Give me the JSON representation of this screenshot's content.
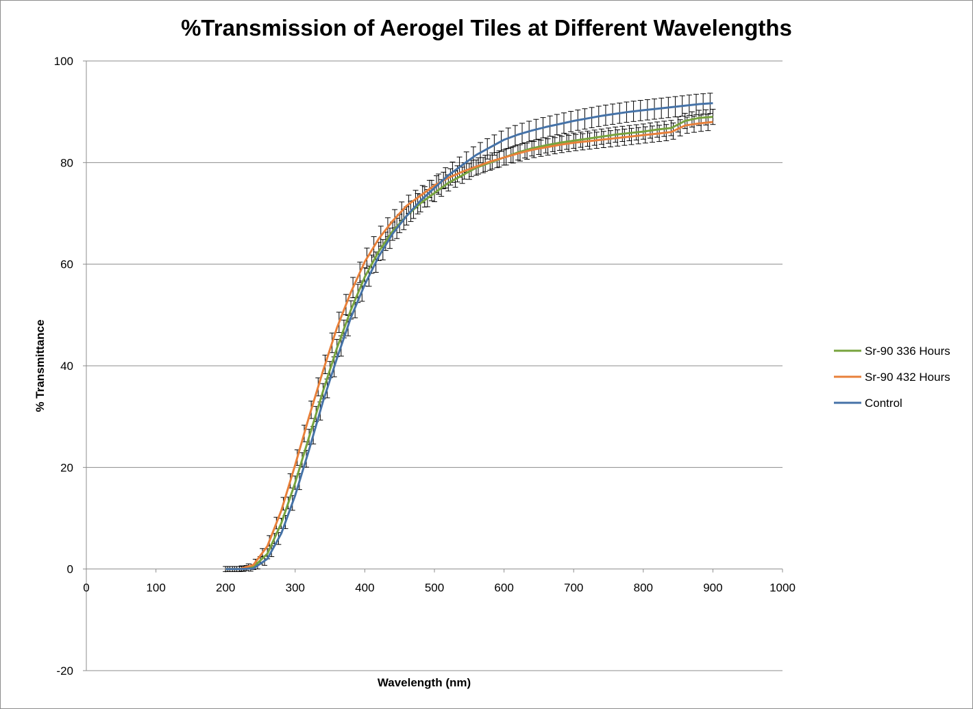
{
  "chart_data": {
    "type": "line",
    "title": "%Transmission of Aerogel Tiles at Different Wavelengths",
    "xlabel": "Wavelength (nm)",
    "ylabel": "% Transmittance",
    "xlim": [
      0,
      1000
    ],
    "ylim": [
      -20,
      100
    ],
    "x_ticks": [
      0,
      100,
      200,
      300,
      400,
      500,
      600,
      700,
      800,
      900,
      1000
    ],
    "y_ticks": [
      -20,
      0,
      20,
      40,
      60,
      80,
      100
    ],
    "x_tick_labels": [
      "0",
      "100",
      "200",
      "300",
      "400",
      "500",
      "600",
      "700",
      "800",
      "900",
      "1000"
    ],
    "y_tick_labels": [
      "-20",
      "0",
      "20",
      "40",
      "60",
      "80",
      "100"
    ],
    "grid": "horizontal",
    "legend": "right",
    "error_bars": true,
    "x": [
      200,
      220,
      240,
      260,
      280,
      300,
      320,
      340,
      360,
      380,
      400,
      420,
      440,
      460,
      480,
      500,
      520,
      540,
      560,
      580,
      600,
      620,
      640,
      660,
      680,
      700,
      720,
      740,
      760,
      780,
      800,
      820,
      840,
      860,
      880,
      900
    ],
    "series": [
      {
        "name": "Sr-90 336 Hours",
        "color": "#77a33d",
        "values": [
          0,
          0,
          0.4,
          3,
          9,
          17,
          26,
          35,
          43.5,
          51,
          57.5,
          62.5,
          66.5,
          69.5,
          72,
          74,
          76,
          77.5,
          79,
          80,
          81,
          82,
          82.8,
          83.4,
          83.9,
          84.3,
          84.7,
          85.1,
          85.5,
          85.8,
          86.1,
          86.5,
          86.8,
          88.2,
          88.8,
          89
        ],
        "error": [
          0.5,
          0.5,
          0.5,
          1,
          1,
          1.3,
          1.5,
          1.5,
          1.7,
          1.8,
          1.8,
          1.8,
          1.8,
          1.8,
          1.7,
          1.7,
          1.6,
          1.6,
          1.5,
          1.5,
          1.5,
          1.5,
          1.5,
          1.5,
          1.5,
          1.5,
          1.5,
          1.5,
          1.5,
          1.5,
          1.5,
          1.5,
          1.5,
          1.5,
          1.5,
          1.5
        ]
      },
      {
        "name": "Sr-90 432 Hours",
        "color": "#e8803a",
        "values": [
          0,
          0,
          0.8,
          4.5,
          11.5,
          20.5,
          30,
          39,
          47.5,
          54.5,
          60.5,
          65,
          68.5,
          71.5,
          73.5,
          75.5,
          77,
          78.2,
          79.2,
          80.2,
          81,
          81.8,
          82.5,
          83,
          83.5,
          83.9,
          84.2,
          84.5,
          84.8,
          85.1,
          85.4,
          85.7,
          86,
          87.3,
          87.7,
          88
        ],
        "error": [
          0.5,
          0.5,
          0.5,
          1,
          1.2,
          1.5,
          1.7,
          1.8,
          2,
          2,
          2,
          2,
          1.8,
          1.8,
          1.7,
          1.7,
          1.6,
          1.6,
          1.6,
          1.6,
          1.6,
          1.6,
          1.6,
          1.6,
          1.6,
          1.6,
          1.6,
          1.6,
          1.6,
          1.6,
          1.6,
          1.6,
          1.6,
          1.6,
          1.6,
          1.6
        ]
      },
      {
        "name": "Control",
        "color": "#4572a7",
        "values": [
          0,
          0,
          0.1,
          2,
          7,
          14.5,
          23.5,
          33,
          41.5,
          49.5,
          56,
          61.5,
          66,
          69.5,
          72.5,
          75,
          77.5,
          79.5,
          81.5,
          83,
          84.5,
          85.5,
          86.3,
          87,
          87.6,
          88.2,
          88.7,
          89.2,
          89.6,
          90,
          90.3,
          90.6,
          90.9,
          91.2,
          91.5,
          91.7
        ],
        "error": [
          0.5,
          0.5,
          0.5,
          1,
          1.2,
          1.5,
          1.7,
          1.8,
          2,
          2,
          2,
          2,
          2,
          2,
          2,
          2,
          2,
          2,
          2,
          2,
          2,
          2,
          2,
          2,
          2,
          2,
          2,
          2,
          2,
          2,
          2,
          2,
          2,
          2,
          2,
          2
        ]
      }
    ]
  }
}
